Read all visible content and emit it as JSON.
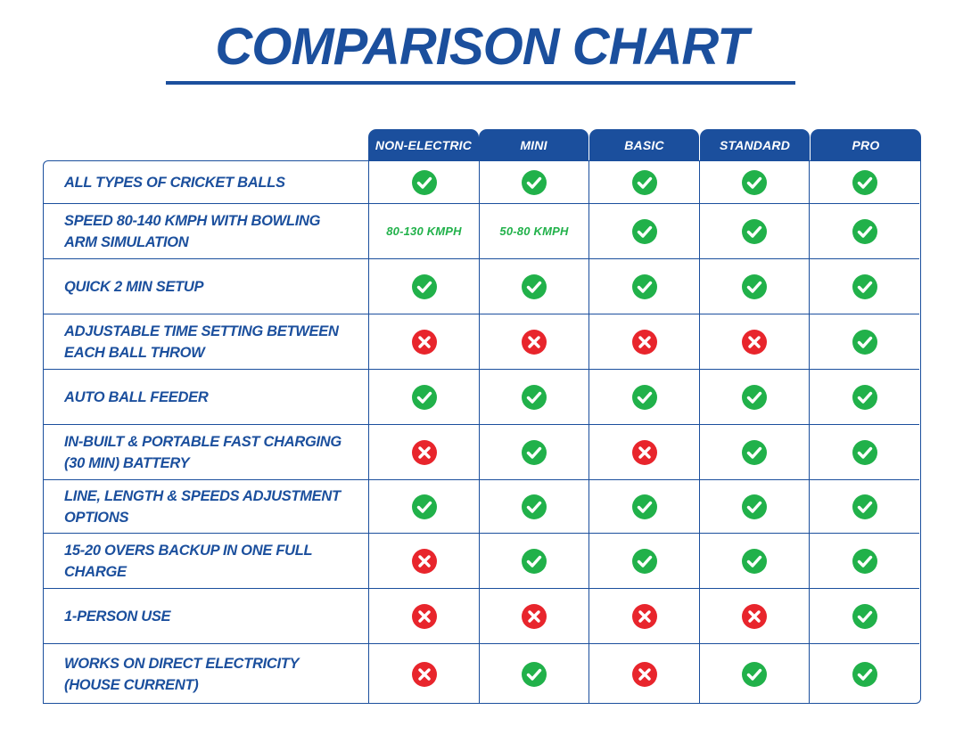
{
  "title": "COMPARISON CHART",
  "colors": {
    "brand_blue": "#1b4f9d",
    "check_green": "#21b14a",
    "cross_red": "#e8252c"
  },
  "columns": [
    "NON-ELECTRIC",
    "MINI",
    "BASIC",
    "STANDARD",
    "PRO"
  ],
  "rows": [
    {
      "feature": "ALL TYPES OF CRICKET BALLS",
      "values": [
        "check",
        "check",
        "check",
        "check",
        "check"
      ]
    },
    {
      "feature": "SPEED 80-140 KMPH WITH BOWLING ARM SIMULATION",
      "values": [
        "80-130 KMPH",
        "50-80 KMPH",
        "check",
        "check",
        "check"
      ]
    },
    {
      "feature": "QUICK 2 MIN SETUP",
      "values": [
        "check",
        "check",
        "check",
        "check",
        "check"
      ]
    },
    {
      "feature": "ADJUSTABLE TIME SETTING BETWEEN EACH BALL THROW",
      "values": [
        "cross",
        "cross",
        "cross",
        "cross",
        "check"
      ]
    },
    {
      "feature": "AUTO BALL FEEDER",
      "values": [
        "check",
        "check",
        "check",
        "check",
        "check"
      ]
    },
    {
      "feature": "IN-BUILT & PORTABLE FAST CHARGING (30 MIN) BATTERY",
      "values": [
        "cross",
        "check",
        "cross",
        "check",
        "check"
      ]
    },
    {
      "feature": "LINE, LENGTH & SPEEDS ADJUSTMENT OPTIONS",
      "values": [
        "check",
        "check",
        "check",
        "check",
        "check"
      ]
    },
    {
      "feature": "15-20 OVERS BACKUP IN ONE FULL CHARGE",
      "values": [
        "cross",
        "check",
        "check",
        "check",
        "check"
      ]
    },
    {
      "feature": "1-PERSON USE",
      "values": [
        "cross",
        "cross",
        "cross",
        "cross",
        "check"
      ]
    },
    {
      "feature": "WORKS ON DIRECT ELECTRICITY (HOUSE CURRENT)",
      "values": [
        "cross",
        "check",
        "cross",
        "check",
        "check"
      ]
    }
  ]
}
